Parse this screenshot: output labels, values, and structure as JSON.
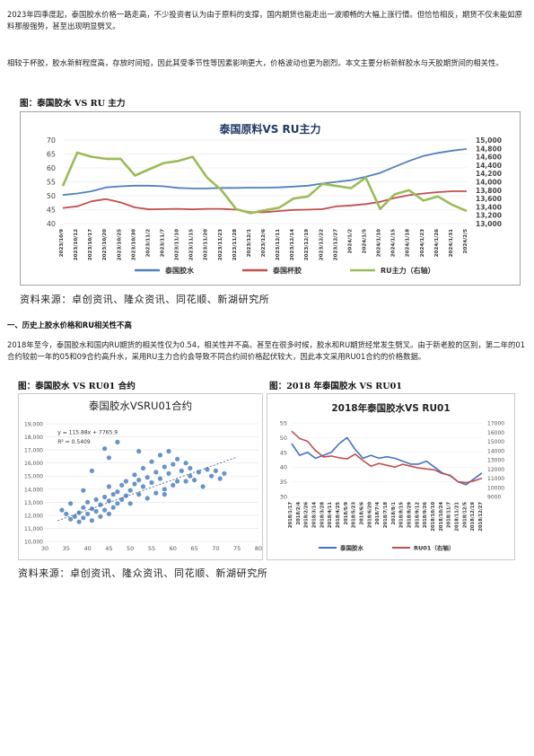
{
  "paragraphs": {
    "p1": "2023年四季度起，泰国胶水价格一路走高，不少投资者认为由于原料的支撑，国内期货也能走出一波顺畅的大幅上涨行情。但恰恰相反，期货不仅未能如原料那般强势，甚至出现明显劈叉。",
    "p2": "相较于杯胶，胶水新鲜程度高，存放时间短，因此其受季节性等因素影响更大，价格波动也更为剧烈。本文主要分析新鲜胶水与天胶期货间的相关性。",
    "p3": "2018年至今，泰国胶水和国内RU期货的相关性仅为0.54，相关性并不高。甚至在很多时候，胶水和RU期货经常发生劈叉。由于新老胶的区别，第二年的01合约较前一年的05和09合约高升水，采用RU主力合约会导致不同合约间价格起伏较大，因此本文采用RU01合约的价格数据。"
  },
  "section_heading": "一、历史上胶水价格和RU相关性不高",
  "fig1": {
    "caption": "图：泰国胶水 VS RU 主力"
  },
  "fig2": {
    "caption": "图：泰国胶水 VS RU01 合约"
  },
  "fig3": {
    "caption": "图：2018 年泰国胶水 VS RU01"
  },
  "source1": "资料来源：卓创资讯、隆众资讯、同花顺、新湖研究所",
  "source2": "资料来源：卓创资讯、隆众资讯、同花顺、新湖研究所",
  "chart_data": [
    {
      "type": "line",
      "title": "泰国原料VS RU主力",
      "categories": [
        "2023/10/9",
        "2023/10/12",
        "2023/10/17",
        "2023/10/20",
        "2023/10/25",
        "2023/10/30",
        "2023/11/2",
        "2023/11/7",
        "2023/11/10",
        "2023/11/15",
        "2023/11/20",
        "2023/11/23",
        "2023/11/28",
        "2023/12/1",
        "2023/12/6",
        "2023/12/11",
        "2023/12/14",
        "2023/12/19",
        "2023/12/22",
        "2023/12/27",
        "2024/1/2",
        "2024/1/5",
        "2024/1/10",
        "2024/1/15",
        "2024/1/18",
        "2024/1/23",
        "2024/1/26",
        "2024/1/31",
        "2024/2/5"
      ],
      "ylim": [
        40,
        70
      ],
      "y2lim": [
        13000,
        15000
      ],
      "y_ticks": [
        40,
        45,
        50,
        55,
        60,
        65,
        70
      ],
      "y2_ticks": [
        "13,000",
        "13,200",
        "13,400",
        "13,600",
        "13,800",
        "14,000",
        "14,200",
        "14,400",
        "14,600",
        "14,800",
        "15,000"
      ],
      "series": [
        {
          "name": "泰国胶水",
          "color": "#4f81bd",
          "axis": "left",
          "values": [
            50.3,
            50.8,
            51.6,
            53.0,
            53.4,
            53.6,
            53.6,
            53.4,
            52.8,
            52.6,
            52.6,
            52.8,
            52.8,
            52.9,
            52.9,
            53.0,
            53.3,
            53.6,
            54.4,
            55.0,
            55.6,
            56.8,
            58.2,
            60.4,
            62.5,
            64.3,
            65.4,
            66.2,
            66.8
          ]
        },
        {
          "name": "泰国杯胶",
          "color": "#c0504d",
          "axis": "left",
          "values": [
            45.6,
            46.2,
            48.0,
            48.8,
            47.6,
            45.8,
            45.1,
            45.2,
            45.3,
            45.1,
            45.3,
            45.3,
            45.0,
            44.1,
            44.1,
            44.5,
            44.9,
            45.0,
            45.2,
            46.2,
            46.5,
            47.0,
            47.8,
            49.2,
            50.2,
            50.8,
            51.3,
            51.6,
            51.6
          ]
        },
        {
          "name": "RU主力（右轴）",
          "color": "#9bbb59",
          "axis": "right",
          "values": [
            13900,
            14700,
            14600,
            14550,
            14550,
            14150,
            14300,
            14450,
            14500,
            14600,
            14100,
            13800,
            13350,
            13250,
            13320,
            13380,
            13600,
            13650,
            13950,
            13900,
            13850,
            14100,
            13350,
            13700,
            13800,
            13550,
            13650,
            13450,
            13300
          ]
        }
      ]
    },
    {
      "type": "scatter",
      "title": "泰国胶水VSRU01合约",
      "xlim": [
        30,
        80
      ],
      "ylim": [
        10000,
        19000
      ],
      "x_ticks": [
        30,
        35,
        40,
        45,
        50,
        55,
        60,
        65,
        70,
        75,
        80
      ],
      "y_ticks": [
        "10,000",
        "11,000",
        "12,000",
        "13,000",
        "14,000",
        "15,000",
        "16,000",
        "17,000",
        "18,000",
        "19,000"
      ],
      "annotations": [
        "y = 115.88x + 7765.9",
        "R² = 0.5409"
      ],
      "trendline": {
        "slope": 115.88,
        "intercept": 7765.9
      },
      "series": [
        {
          "name": "",
          "color": "#4f81bd",
          "points": [
            [
              34,
              12400
            ],
            [
              35,
              12100
            ],
            [
              36,
              11700
            ],
            [
              37,
              11900
            ],
            [
              38,
              11500
            ],
            [
              38,
              12200
            ],
            [
              39,
              11800
            ],
            [
              39,
              12600
            ],
            [
              40,
              12100
            ],
            [
              40,
              13000
            ],
            [
              41,
              11600
            ],
            [
              41,
              12500
            ],
            [
              42,
              12300
            ],
            [
              42,
              13200
            ],
            [
              43,
              11900
            ],
            [
              43,
              12800
            ],
            [
              44,
              13400
            ],
            [
              44,
              12400
            ],
            [
              45,
              12100
            ],
            [
              45,
              13100
            ],
            [
              45,
              14200
            ],
            [
              46,
              13600
            ],
            [
              46,
              12600
            ],
            [
              47,
              13800
            ],
            [
              47,
              12900
            ],
            [
              48,
              14300
            ],
            [
              48,
              13200
            ],
            [
              49,
              13500
            ],
            [
              49,
              14600
            ],
            [
              50,
              13900
            ],
            [
              50,
              12900
            ],
            [
              51,
              14400
            ],
            [
              51,
              15100
            ],
            [
              52,
              13600
            ],
            [
              52,
              14700
            ],
            [
              53,
              15600
            ],
            [
              53,
              14200
            ],
            [
              54,
              13300
            ],
            [
              54,
              14900
            ],
            [
              55,
              16100
            ],
            [
              55,
              14500
            ],
            [
              56,
              13700
            ],
            [
              56,
              15300
            ],
            [
              57,
              16600
            ],
            [
              57,
              14800
            ],
            [
              58,
              14000
            ],
            [
              58,
              15700
            ],
            [
              59,
              16900
            ],
            [
              59,
              15200
            ],
            [
              60,
              14300
            ],
            [
              60,
              15900
            ],
            [
              61,
              14600
            ],
            [
              61,
              16300
            ],
            [
              62,
              15400
            ],
            [
              63,
              14600
            ],
            [
              63,
              16000
            ],
            [
              64,
              15000
            ],
            [
              64,
              15600
            ],
            [
              65,
              14700
            ],
            [
              66,
              15300
            ],
            [
              67,
              14200
            ],
            [
              68,
              15500
            ],
            [
              69,
              15000
            ],
            [
              70,
              15400
            ],
            [
              71,
              14800
            ],
            [
              72,
              15200
            ],
            [
              44,
              17100
            ],
            [
              45,
              16400
            ],
            [
              47,
              17600
            ],
            [
              41,
              15400
            ],
            [
              39,
              13900
            ],
            [
              52,
              16900
            ],
            [
              36,
              12900
            ],
            [
              58,
              13600
            ]
          ]
        }
      ]
    },
    {
      "type": "line",
      "title": "2018年泰国胶水VS RU01",
      "categories": [
        "2018/1/17",
        "2018/2/4",
        "2018/2/26",
        "2018/3/14",
        "2018/3/28",
        "2018/4/11",
        "2018/4/25",
        "2018/5/9",
        "2018/5/23",
        "2018/6/6",
        "2018/6/20",
        "2018/7/4",
        "2018/7/18",
        "2018/8/1",
        "2018/8/15",
        "2018/8/29",
        "2018/9/12",
        "2018/9/26",
        "2018/10/10",
        "2018/10/24",
        "2018/11/7",
        "2018/11/21",
        "2018/12/5",
        "2018/12/19",
        "2018/12/27"
      ],
      "ylim": [
        30,
        55
      ],
      "y2lim": [
        9000,
        17000
      ],
      "y_ticks": [
        30,
        35,
        40,
        45,
        50,
        55
      ],
      "y2_ticks": [
        9000,
        10000,
        11000,
        12000,
        13000,
        14000,
        15000,
        16000,
        17000
      ],
      "series": [
        {
          "name": "泰国胶水",
          "color": "#4472c4",
          "axis": "left",
          "values": [
            48,
            44,
            45,
            43,
            44,
            45,
            48,
            50,
            46,
            43,
            44,
            43,
            43.5,
            43,
            42,
            41,
            41,
            42,
            40,
            38,
            37,
            35,
            34,
            36,
            38
          ]
        },
        {
          "name": "RU01（右轴）",
          "color": "#c0504d",
          "axis": "right",
          "values": [
            16100,
            15300,
            15000,
            14000,
            13300,
            13400,
            13200,
            13100,
            13600,
            12900,
            12300,
            12600,
            12400,
            12200,
            12500,
            12300,
            12100,
            12000,
            11900,
            11500,
            11300,
            10600,
            10500,
            10700,
            11000
          ]
        }
      ]
    }
  ]
}
